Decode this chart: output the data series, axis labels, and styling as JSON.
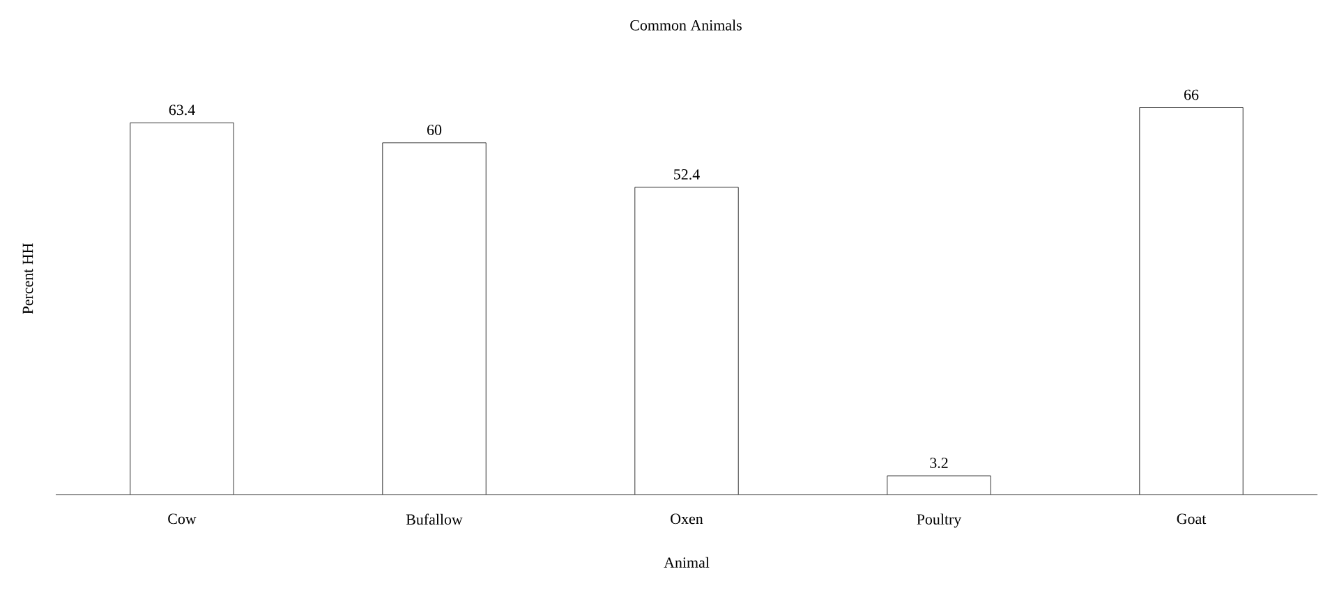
{
  "chart_data": {
    "type": "bar",
    "title": "Common Animals",
    "xlabel": "Animal",
    "ylabel": "Percent HH",
    "categories": [
      "Cow",
      "Bufallow",
      "Oxen",
      "Poultry",
      "Goat"
    ],
    "values": [
      63.4,
      60,
      52.4,
      3.2,
      66
    ],
    "color": "#ffffff",
    "data_labels": true
  }
}
